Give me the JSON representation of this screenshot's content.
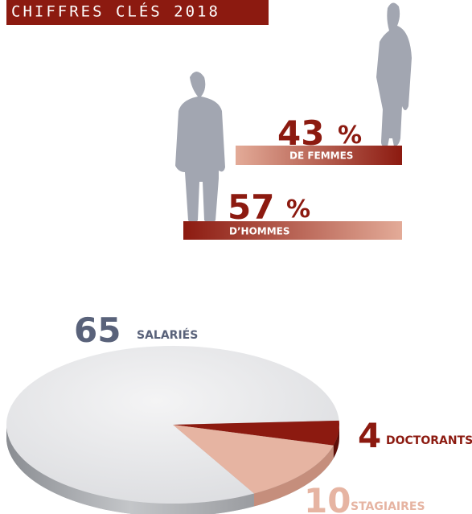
{
  "title": "CHIFFRES CLÉS 2018",
  "gender": [
    {
      "value": 43,
      "unit": "%",
      "label": "DE FEMMES"
    },
    {
      "value": 57,
      "unit": "%",
      "label": "D’HOMMES"
    }
  ],
  "chart_data": {
    "type": "pie",
    "categories": [
      "SALARIÉS",
      "DOCTORANTS",
      "STAGIAIRES"
    ],
    "values": [
      65,
      4,
      10
    ],
    "colors": [
      "#ebebec",
      "#8c1a10",
      "#e6b4a2"
    ]
  }
}
